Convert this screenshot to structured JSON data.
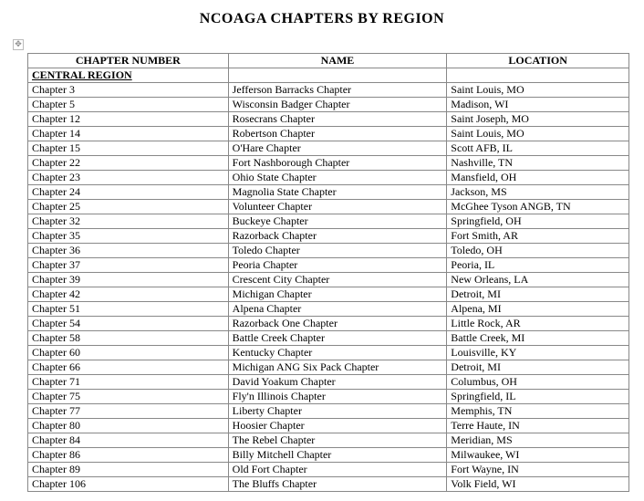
{
  "title": "NCOAGA CHAPTERS BY REGION",
  "columns": [
    "CHAPTER NUMBER",
    "NAME",
    "LOCATION"
  ],
  "region_label": "CENTRAL REGION",
  "rows": [
    {
      "num": "Chapter 3",
      "name": "Jefferson Barracks Chapter",
      "loc": "Saint Louis, MO"
    },
    {
      "num": "Chapter 5",
      "name": "Wisconsin Badger Chapter",
      "loc": "Madison, WI"
    },
    {
      "num": "Chapter 12",
      "name": "Rosecrans Chapter",
      "loc": "Saint Joseph, MO"
    },
    {
      "num": "Chapter 14",
      "name": "Robertson Chapter",
      "loc": "Saint Louis, MO"
    },
    {
      "num": "Chapter 15",
      "name": "O'Hare Chapter",
      "loc": "Scott AFB, IL"
    },
    {
      "num": "Chapter 22",
      "name": "Fort Nashborough Chapter",
      "loc": "Nashville, TN"
    },
    {
      "num": "Chapter 23",
      "name": "Ohio State Chapter",
      "loc": "Mansfield, OH"
    },
    {
      "num": "Chapter 24",
      "name": "Magnolia State Chapter",
      "loc": "Jackson, MS"
    },
    {
      "num": "Chapter 25",
      "name": "Volunteer Chapter",
      "loc": "McGhee Tyson ANGB, TN"
    },
    {
      "num": "Chapter 32",
      "name": "Buckeye Chapter",
      "loc": "Springfield, OH"
    },
    {
      "num": "Chapter 35",
      "name": "Razorback Chapter",
      "loc": "Fort Smith, AR"
    },
    {
      "num": "Chapter 36",
      "name": "Toledo Chapter",
      "loc": "Toledo, OH"
    },
    {
      "num": "Chapter 37",
      "name": "Peoria Chapter",
      "loc": "Peoria, IL"
    },
    {
      "num": "Chapter 39",
      "name": "Crescent City Chapter",
      "loc": "New Orleans, LA"
    },
    {
      "num": "Chapter 42",
      "name": "Michigan Chapter",
      "loc": "Detroit, MI"
    },
    {
      "num": "Chapter 51",
      "name": "Alpena Chapter",
      "loc": "Alpena, MI"
    },
    {
      "num": "Chapter 54",
      "name": "Razorback One Chapter",
      "loc": "Little Rock, AR"
    },
    {
      "num": "Chapter 58",
      "name": "Battle Creek Chapter",
      "loc": "Battle Creek, MI"
    },
    {
      "num": "Chapter 60",
      "name": "Kentucky Chapter",
      "loc": "Louisville, KY"
    },
    {
      "num": "Chapter 66",
      "name": "Michigan ANG Six Pack Chapter",
      "loc": "Detroit, MI"
    },
    {
      "num": "Chapter 71",
      "name": "David Yoakum Chapter",
      "loc": "Columbus, OH"
    },
    {
      "num": "Chapter 75",
      "name": "Fly'n Illinois Chapter",
      "loc": "Springfield, IL"
    },
    {
      "num": "Chapter 77",
      "name": "Liberty Chapter",
      "loc": "Memphis, TN"
    },
    {
      "num": "Chapter 80",
      "name": "Hoosier Chapter",
      "loc": "Terre Haute, IN"
    },
    {
      "num": "Chapter 84",
      "name": "The Rebel Chapter",
      "loc": "Meridian, MS"
    },
    {
      "num": "Chapter 86",
      "name": "Billy Mitchell Chapter",
      "loc": "Milwaukee, WI"
    },
    {
      "num": "Chapter 89",
      "name": "Old Fort Chapter",
      "loc": "Fort Wayne, IN"
    },
    {
      "num": "Chapter 106",
      "name": "The Bluffs Chapter",
      "loc": "Volk Field, WI"
    }
  ]
}
